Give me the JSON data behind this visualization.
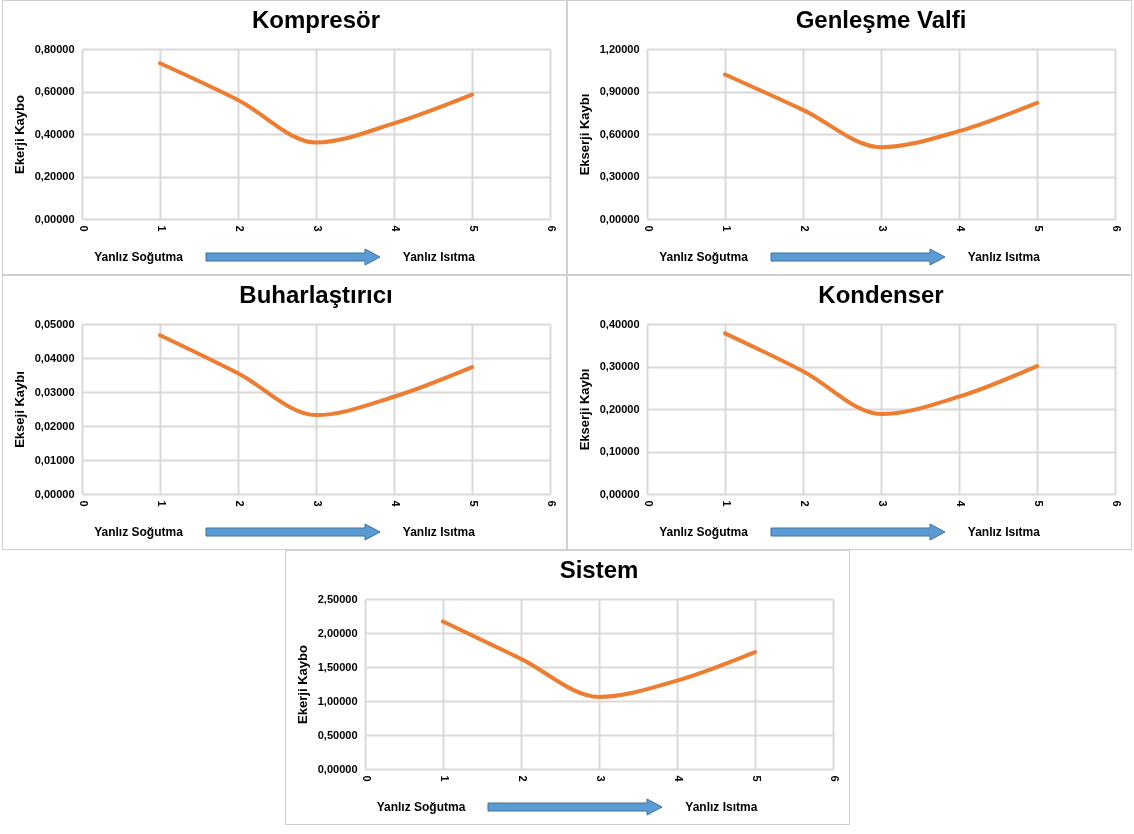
{
  "chart_data": [
    {
      "type": "line",
      "title": "Kompresör",
      "ylabel": "Ekerji Kaybo",
      "x": [
        1,
        2,
        3,
        4,
        5
      ],
      "series": [
        {
          "color": "#ed7d31",
          "values": [
            0.733,
            0.56,
            0.36,
            0.45,
            0.585
          ]
        }
      ],
      "xlim": [
        0,
        6
      ],
      "xticks": [
        0,
        1,
        2,
        3,
        4,
        5,
        6
      ],
      "ylim": [
        0,
        0.8
      ],
      "yticks": [
        {
          "value": 0,
          "label": "0,00000"
        },
        {
          "value": 0.2,
          "label": "0,20000"
        },
        {
          "value": 0.4,
          "label": "0,40000"
        },
        {
          "value": 0.6,
          "label": "0,60000"
        },
        {
          "value": 0.8,
          "label": "0,80000"
        }
      ],
      "grid": true,
      "marker": "none",
      "line_style": "solid",
      "annotations": [
        "Yanlız Soğutma",
        "Yanlız Isıtma"
      ]
    },
    {
      "type": "line",
      "title": "Genleşme Valfi",
      "ylabel": "Ekserji Kaybı",
      "x": [
        1,
        2,
        3,
        4,
        5
      ],
      "series": [
        {
          "color": "#ed7d31",
          "values": [
            1.02,
            0.77,
            0.507,
            0.62,
            0.82
          ]
        }
      ],
      "xlim": [
        0,
        6
      ],
      "xticks": [
        0,
        1,
        2,
        3,
        4,
        5,
        6
      ],
      "ylim": [
        0,
        1.2
      ],
      "yticks": [
        {
          "value": 0,
          "label": "0,00000"
        },
        {
          "value": 0.3,
          "label": "0,30000"
        },
        {
          "value": 0.6,
          "label": "0,60000"
        },
        {
          "value": 0.9,
          "label": "0,90000"
        },
        {
          "value": 1.2,
          "label": "1,20000"
        }
      ],
      "grid": true,
      "marker": "none",
      "line_style": "solid",
      "annotations": [
        "Yanlız Soğutma",
        "Yanlız Isıtma"
      ]
    },
    {
      "type": "line",
      "title": "Buharlaştırıcı",
      "ylabel": "Ekseji Kaybı",
      "x": [
        1,
        2,
        3,
        4,
        5
      ],
      "series": [
        {
          "color": "#ed7d31",
          "values": [
            0.0467,
            0.0355,
            0.0232,
            0.0286,
            0.0373
          ]
        }
      ],
      "xlim": [
        0,
        6
      ],
      "xticks": [
        0,
        1,
        2,
        3,
        4,
        5,
        6
      ],
      "ylim": [
        0,
        0.05
      ],
      "yticks": [
        {
          "value": 0,
          "label": "0,00000"
        },
        {
          "value": 0.01,
          "label": "0,01000"
        },
        {
          "value": 0.02,
          "label": "0,02000"
        },
        {
          "value": 0.03,
          "label": "0,03000"
        },
        {
          "value": 0.04,
          "label": "0,04000"
        },
        {
          "value": 0.05,
          "label": "0,05000"
        }
      ],
      "grid": true,
      "marker": "none",
      "line_style": "solid",
      "annotations": [
        "Yanlız Soğutma",
        "Yanlız Isıtma"
      ]
    },
    {
      "type": "line",
      "title": "Kondenser",
      "ylabel": "Ekserji Kaybı",
      "x": [
        1,
        2,
        3,
        4,
        5
      ],
      "series": [
        {
          "color": "#ed7d31",
          "values": [
            0.378,
            0.289,
            0.188,
            0.229,
            0.301
          ]
        }
      ],
      "xlim": [
        0,
        6
      ],
      "xticks": [
        0,
        1,
        2,
        3,
        4,
        5,
        6
      ],
      "ylim": [
        0,
        0.4
      ],
      "yticks": [
        {
          "value": 0,
          "label": "0,00000"
        },
        {
          "value": 0.1,
          "label": "0,10000"
        },
        {
          "value": 0.2,
          "label": "0,20000"
        },
        {
          "value": 0.3,
          "label": "0,30000"
        },
        {
          "value": 0.4,
          "label": "0,40000"
        }
      ],
      "grid": true,
      "marker": "none",
      "line_style": "solid",
      "annotations": [
        "Yanlız Soğutma",
        "Yanlız Isıtma"
      ]
    },
    {
      "type": "line",
      "title": "Sistem",
      "ylabel": "Ekerji Kaybo",
      "x": [
        1,
        2,
        3,
        4,
        5
      ],
      "series": [
        {
          "color": "#ed7d31",
          "values": [
            2.17,
            1.62,
            1.06,
            1.3,
            1.72
          ]
        }
      ],
      "xlim": [
        0,
        6
      ],
      "xticks": [
        0,
        1,
        2,
        3,
        4,
        5,
        6
      ],
      "ylim": [
        0,
        2.5
      ],
      "yticks": [
        {
          "value": 0,
          "label": "0,00000"
        },
        {
          "value": 0.5,
          "label": "0,50000"
        },
        {
          "value": 1,
          "label": "1,00000"
        },
        {
          "value": 1.5,
          "label": "1,50000"
        },
        {
          "value": 2,
          "label": "2,00000"
        },
        {
          "value": 2.5,
          "label": "2,50000"
        }
      ],
      "grid": true,
      "marker": "none",
      "line_style": "solid",
      "annotations": [
        "Yanlız Soğutma",
        "Yanlız Isıtma"
      ]
    }
  ]
}
